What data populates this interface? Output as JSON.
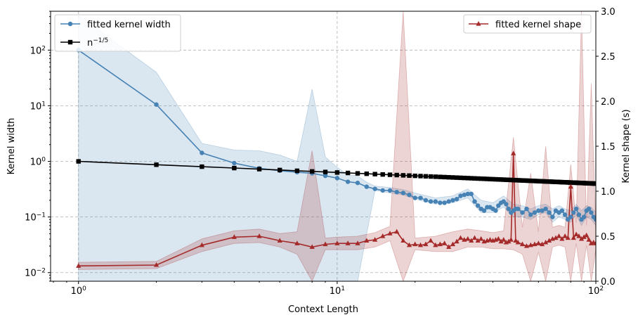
{
  "chart_data": {
    "type": "line",
    "xlabel": "Context Length",
    "ylabel": "Kernel width",
    "ylabel_right": "Kernel shape (s)",
    "x_scale": "log",
    "y_scale": "log",
    "xlim": [
      0.78,
      100
    ],
    "ylim": [
      0.007,
      500
    ],
    "ylim_right": [
      0,
      3
    ],
    "grid": true,
    "x_ticks": [
      {
        "value": 1,
        "label": "10",
        "exp": "0"
      },
      {
        "value": 10,
        "label": "10",
        "exp": "1"
      },
      {
        "value": 100,
        "label": "10",
        "exp": "2"
      }
    ],
    "y_ticks": [
      {
        "value": 0.01,
        "label": "10",
        "exp": "−2"
      },
      {
        "value": 0.1,
        "label": "10",
        "exp": "−1"
      },
      {
        "value": 1,
        "label": "10",
        "exp": "0"
      },
      {
        "value": 10,
        "label": "10",
        "exp": "1"
      },
      {
        "value": 100,
        "label": "10",
        "exp": "2"
      }
    ],
    "y_right_ticks": [
      "0.0",
      "0.5",
      "1.0",
      "1.5",
      "2.0",
      "2.5",
      "3.0"
    ],
    "legend_left": {
      "placement": "top-left",
      "entries": [
        {
          "label": "fitted kernel width",
          "color": "#4682b4",
          "marker": "circle"
        },
        {
          "label": "n",
          "sup": "−1/5",
          "color": "#000000",
          "marker": "square"
        }
      ]
    },
    "legend_right": {
      "placement": "top-right",
      "entries": [
        {
          "label": "fitted kernel shape",
          "color": "#a52a2a",
          "marker": "triangle"
        }
      ]
    },
    "series": [
      {
        "name": "fitted kernel width",
        "axis": "left",
        "color": "#4682b4",
        "points": [
          [
            1,
            100
          ],
          [
            2,
            10.5
          ],
          [
            3,
            1.42
          ],
          [
            4,
            0.93
          ],
          [
            5,
            0.75
          ],
          [
            6,
            0.68
          ],
          [
            7,
            0.64
          ],
          [
            8,
            0.61
          ],
          [
            9,
            0.55
          ],
          [
            10,
            0.5
          ],
          [
            11,
            0.43
          ],
          [
            12,
            0.41
          ],
          [
            13,
            0.35
          ],
          [
            14,
            0.32
          ],
          [
            15,
            0.3
          ],
          [
            16,
            0.3
          ],
          [
            17,
            0.28
          ],
          [
            18,
            0.27
          ],
          [
            19,
            0.25
          ],
          [
            20,
            0.22
          ],
          [
            21,
            0.22
          ],
          [
            22,
            0.2
          ],
          [
            23,
            0.19
          ],
          [
            24,
            0.19
          ],
          [
            25,
            0.18
          ],
          [
            26,
            0.18
          ],
          [
            27,
            0.19
          ],
          [
            28,
            0.2
          ],
          [
            29,
            0.21
          ],
          [
            30,
            0.24
          ],
          [
            31,
            0.25
          ],
          [
            32,
            0.26
          ],
          [
            33,
            0.26
          ],
          [
            34,
            0.19
          ],
          [
            35,
            0.16
          ],
          [
            36,
            0.14
          ],
          [
            37,
            0.13
          ],
          [
            38,
            0.15
          ],
          [
            39,
            0.15
          ],
          [
            40,
            0.14
          ],
          [
            41,
            0.13
          ],
          [
            42,
            0.16
          ],
          [
            43,
            0.18
          ],
          [
            44,
            0.19
          ],
          [
            45,
            0.17
          ],
          [
            46,
            0.14
          ],
          [
            47,
            0.12
          ],
          [
            48,
            0.13
          ],
          [
            49,
            0.14
          ],
          [
            50,
            0.14
          ],
          [
            52,
            0.12
          ],
          [
            54,
            0.14
          ],
          [
            56,
            0.11
          ],
          [
            58,
            0.12
          ],
          [
            60,
            0.13
          ],
          [
            62,
            0.13
          ],
          [
            64,
            0.14
          ],
          [
            66,
            0.12
          ],
          [
            68,
            0.1
          ],
          [
            70,
            0.13
          ],
          [
            72,
            0.12
          ],
          [
            74,
            0.13
          ],
          [
            76,
            0.11
          ],
          [
            78,
            0.09
          ],
          [
            80,
            0.1
          ],
          [
            82,
            0.12
          ],
          [
            84,
            0.14
          ],
          [
            86,
            0.11
          ],
          [
            88,
            0.09
          ],
          [
            90,
            0.1
          ],
          [
            92,
            0.13
          ],
          [
            94,
            0.14
          ],
          [
            96,
            0.12
          ],
          [
            98,
            0.1
          ],
          [
            100,
            0.09
          ]
        ],
        "band_lower": [
          [
            1,
            0.007
          ],
          [
            2,
            0.007
          ],
          [
            3,
            0.007
          ],
          [
            4,
            0.007
          ],
          [
            6,
            0.007
          ],
          [
            8,
            0.007
          ],
          [
            10,
            0.007
          ],
          [
            12,
            0.007
          ],
          [
            14,
            0.3
          ],
          [
            16,
            0.27
          ],
          [
            18,
            0.25
          ],
          [
            20,
            0.21
          ],
          [
            24,
            0.17
          ],
          [
            28,
            0.18
          ],
          [
            32,
            0.22
          ],
          [
            36,
            0.12
          ],
          [
            40,
            0.12
          ],
          [
            44,
            0.15
          ],
          [
            48,
            0.1
          ],
          [
            52,
            0.1
          ],
          [
            56,
            0.09
          ],
          [
            60,
            0.11
          ],
          [
            64,
            0.12
          ],
          [
            68,
            0.08
          ],
          [
            72,
            0.1
          ],
          [
            76,
            0.09
          ],
          [
            80,
            0.08
          ],
          [
            84,
            0.11
          ],
          [
            88,
            0.07
          ],
          [
            92,
            0.1
          ],
          [
            96,
            0.09
          ],
          [
            100,
            0.07
          ]
        ],
        "band_upper": [
          [
            1,
            420
          ],
          [
            2,
            40
          ],
          [
            3,
            2.1
          ],
          [
            4,
            1.6
          ],
          [
            5,
            1.55
          ],
          [
            6,
            1.3
          ],
          [
            7,
            1.0
          ],
          [
            8,
            20
          ],
          [
            9,
            1.2
          ],
          [
            10,
            0.78
          ],
          [
            11,
            0.58
          ],
          [
            12,
            0.55
          ],
          [
            13,
            0.42
          ],
          [
            14,
            0.36
          ],
          [
            16,
            0.34
          ],
          [
            18,
            0.31
          ],
          [
            20,
            0.27
          ],
          [
            24,
            0.22
          ],
          [
            28,
            0.24
          ],
          [
            32,
            0.32
          ],
          [
            36,
            0.2
          ],
          [
            40,
            0.18
          ],
          [
            44,
            0.24
          ],
          [
            48,
            0.17
          ],
          [
            52,
            0.16
          ],
          [
            56,
            0.14
          ],
          [
            60,
            0.16
          ],
          [
            64,
            0.17
          ],
          [
            68,
            0.14
          ],
          [
            72,
            0.16
          ],
          [
            76,
            0.14
          ],
          [
            80,
            0.13
          ],
          [
            84,
            0.17
          ],
          [
            88,
            0.13
          ],
          [
            92,
            0.16
          ],
          [
            96,
            0.15
          ],
          [
            100,
            0.12
          ]
        ]
      },
      {
        "name": "n^{-1/5}",
        "axis": "left",
        "color": "#000000",
        "formula": "n^-1/5",
        "x_start": 1,
        "x_end": 100
      },
      {
        "name": "fitted kernel shape",
        "axis": "right",
        "color": "#a52a2a",
        "points": [
          [
            1,
            0.17
          ],
          [
            2,
            0.18
          ],
          [
            3,
            0.4
          ],
          [
            4,
            0.49
          ],
          [
            5,
            0.5
          ],
          [
            6,
            0.45
          ],
          [
            7,
            0.42
          ],
          [
            8,
            0.38
          ],
          [
            9,
            0.41
          ],
          [
            10,
            0.42
          ],
          [
            11,
            0.42
          ],
          [
            12,
            0.42
          ],
          [
            13,
            0.45
          ],
          [
            14,
            0.46
          ],
          [
            15,
            0.5
          ],
          [
            16,
            0.53
          ],
          [
            17,
            0.55
          ],
          [
            18,
            0.45
          ],
          [
            19,
            0.4
          ],
          [
            20,
            0.41
          ],
          [
            21,
            0.4
          ],
          [
            22,
            0.41
          ],
          [
            23,
            0.45
          ],
          [
            24,
            0.4
          ],
          [
            25,
            0.41
          ],
          [
            26,
            0.42
          ],
          [
            27,
            0.38
          ],
          [
            28,
            0.41
          ],
          [
            29,
            0.44
          ],
          [
            30,
            0.48
          ],
          [
            31,
            0.46
          ],
          [
            32,
            0.47
          ],
          [
            33,
            0.45
          ],
          [
            34,
            0.48
          ],
          [
            35,
            0.45
          ],
          [
            36,
            0.47
          ],
          [
            37,
            0.44
          ],
          [
            38,
            0.45
          ],
          [
            39,
            0.46
          ],
          [
            40,
            0.45
          ],
          [
            41,
            0.46
          ],
          [
            42,
            0.47
          ],
          [
            43,
            0.44
          ],
          [
            44,
            0.46
          ],
          [
            45,
            0.43
          ],
          [
            46,
            0.44
          ],
          [
            47,
            0.46
          ],
          [
            48,
            1.42
          ],
          [
            49,
            0.45
          ],
          [
            50,
            0.43
          ],
          [
            52,
            0.41
          ],
          [
            54,
            0.39
          ],
          [
            56,
            0.4
          ],
          [
            58,
            0.41
          ],
          [
            60,
            0.42
          ],
          [
            62,
            0.41
          ],
          [
            64,
            0.43
          ],
          [
            66,
            0.45
          ],
          [
            68,
            0.47
          ],
          [
            70,
            0.48
          ],
          [
            72,
            0.5
          ],
          [
            74,
            0.47
          ],
          [
            76,
            0.5
          ],
          [
            78,
            0.48
          ],
          [
            80,
            1.05
          ],
          [
            82,
            0.48
          ],
          [
            84,
            0.52
          ],
          [
            86,
            0.5
          ],
          [
            88,
            0.47
          ],
          [
            90,
            0.49
          ],
          [
            92,
            0.51
          ],
          [
            94,
            0.46
          ],
          [
            96,
            0.42
          ],
          [
            98,
            0.43
          ],
          [
            100,
            0.42
          ]
        ],
        "band_lower": [
          [
            1,
            0.13
          ],
          [
            2,
            0.14
          ],
          [
            3,
            0.33
          ],
          [
            4,
            0.42
          ],
          [
            5,
            0.43
          ],
          [
            6,
            0.38
          ],
          [
            7,
            0.3
          ],
          [
            8,
            0.0
          ],
          [
            9,
            0.35
          ],
          [
            10,
            0.35
          ],
          [
            12,
            0.35
          ],
          [
            14,
            0.38
          ],
          [
            16,
            0.45
          ],
          [
            18,
            0.0
          ],
          [
            20,
            0.35
          ],
          [
            24,
            0.33
          ],
          [
            28,
            0.33
          ],
          [
            32,
            0.38
          ],
          [
            36,
            0.38
          ],
          [
            40,
            0.36
          ],
          [
            44,
            0.36
          ],
          [
            48,
            0.35
          ],
          [
            52,
            0.3
          ],
          [
            56,
            0.0
          ],
          [
            60,
            0.32
          ],
          [
            64,
            0.0
          ],
          [
            68,
            0.38
          ],
          [
            72,
            0.4
          ],
          [
            76,
            0.38
          ],
          [
            80,
            0.0
          ],
          [
            84,
            0.42
          ],
          [
            88,
            0.0
          ],
          [
            92,
            0.4
          ],
          [
            96,
            0.0
          ],
          [
            100,
            0.35
          ]
        ],
        "band_upper": [
          [
            1,
            0.21
          ],
          [
            2,
            0.22
          ],
          [
            3,
            0.47
          ],
          [
            4,
            0.56
          ],
          [
            5,
            0.58
          ],
          [
            6,
            0.53
          ],
          [
            7,
            0.55
          ],
          [
            8,
            1.45
          ],
          [
            9,
            0.48
          ],
          [
            10,
            0.49
          ],
          [
            12,
            0.5
          ],
          [
            14,
            0.54
          ],
          [
            16,
            0.61
          ],
          [
            18,
            3.0
          ],
          [
            20,
            0.48
          ],
          [
            24,
            0.5
          ],
          [
            28,
            0.55
          ],
          [
            32,
            0.58
          ],
          [
            36,
            0.56
          ],
          [
            40,
            0.54
          ],
          [
            44,
            0.56
          ],
          [
            48,
            1.6
          ],
          [
            52,
            0.6
          ],
          [
            56,
            1.2
          ],
          [
            60,
            0.55
          ],
          [
            64,
            1.5
          ],
          [
            68,
            0.6
          ],
          [
            72,
            0.62
          ],
          [
            76,
            0.6
          ],
          [
            80,
            1.3
          ],
          [
            84,
            0.65
          ],
          [
            88,
            3.0
          ],
          [
            92,
            0.62
          ],
          [
            96,
            2.2
          ],
          [
            100,
            0.55
          ]
        ]
      }
    ]
  }
}
